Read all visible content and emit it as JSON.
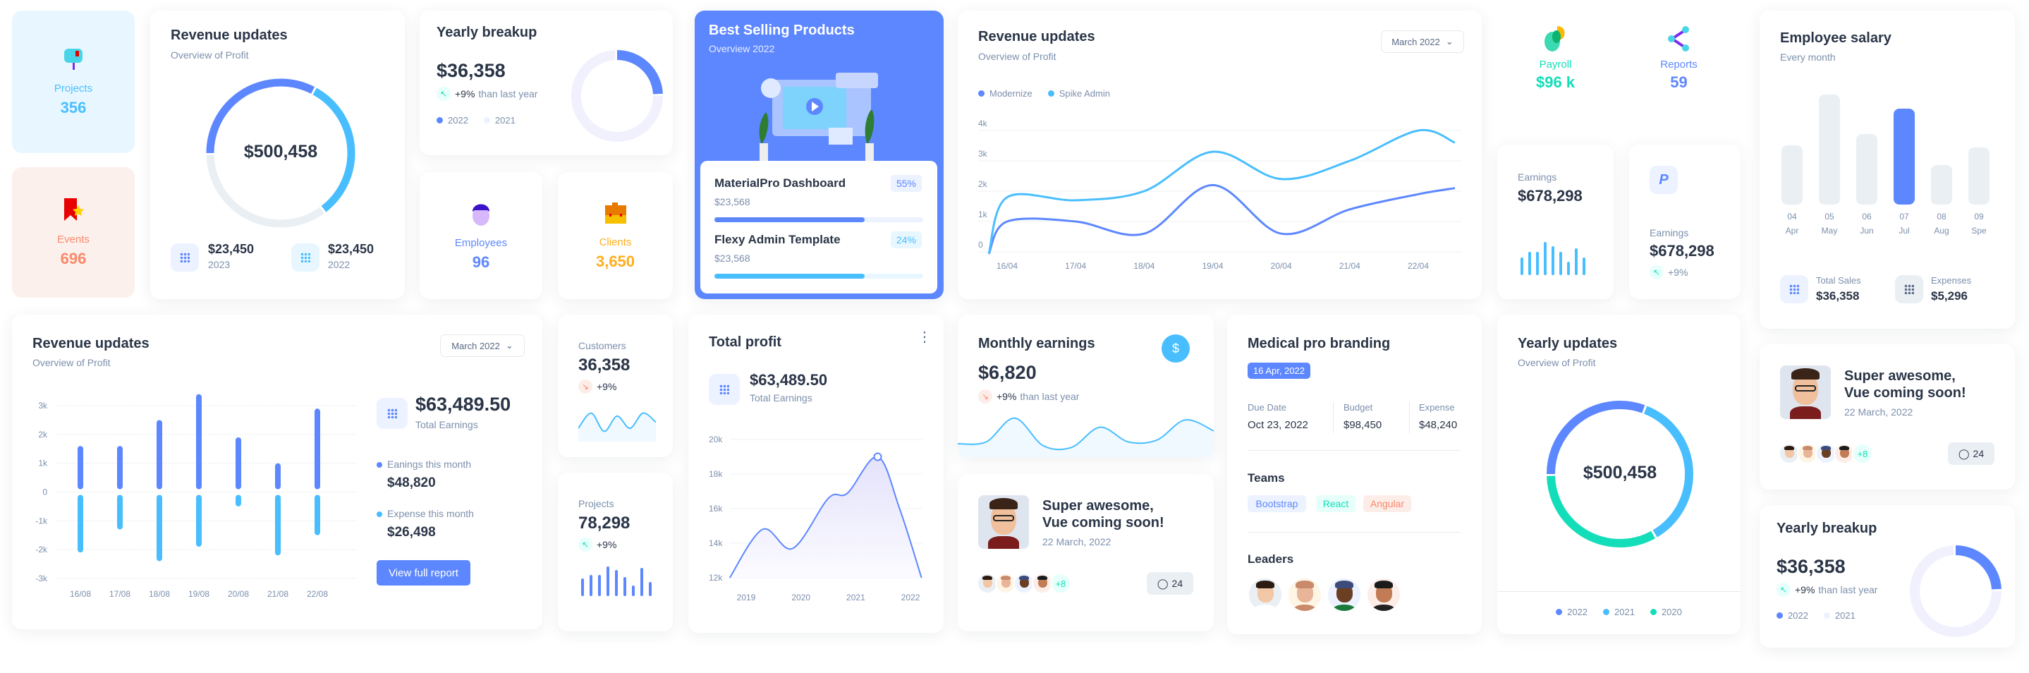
{
  "colors": {
    "primary": "#5d87ff",
    "secondary": "#49beff",
    "success": "#13deb9",
    "warning": "#ffae1f",
    "error": "#fa896b",
    "light_primary": "#ecf2ff",
    "grey": "#eaeff4",
    "text": "#2a3547"
  },
  "projects": {
    "label": "Projects",
    "value": "356",
    "icon": "mailbox-icon"
  },
  "events": {
    "label": "Events",
    "value": "696",
    "icon": "bookmark-star-icon"
  },
  "revenue_donut": {
    "title": "Revenue updates",
    "subtitle": "Overview of Profit",
    "center": "$500,458",
    "segments": [
      0.33,
      0.32,
      0.35
    ],
    "stats": [
      {
        "value": "$23,450",
        "label": "2023"
      },
      {
        "value": "$23,450",
        "label": "2022"
      }
    ]
  },
  "yearly_breakup": {
    "title": "Yearly breakup",
    "value": "$36,358",
    "trend": "+9%",
    "trend_text": "than last year",
    "legend": [
      "2022",
      "2021"
    ],
    "segments": [
      0.25,
      0.75
    ]
  },
  "employees": {
    "label": "Employees",
    "value": "96"
  },
  "clients": {
    "label": "Clients",
    "value": "3,650"
  },
  "best_selling": {
    "title": "Best Selling Products",
    "subtitle": "Overview 2022",
    "items": [
      {
        "name": "MaterialPro Dashboard",
        "price": "$23,568",
        "badge": "55%",
        "progress": 0.72
      },
      {
        "name": "Flexy Admin Template",
        "price": "$23,568",
        "badge": "24%",
        "progress": 0.72
      }
    ]
  },
  "revenue_line": {
    "title": "Revenue updates",
    "subtitle": "Overview of Profit",
    "dropdown": "March 2022",
    "chart_data": {
      "type": "line",
      "x": [
        "16/04",
        "17/04",
        "18/04",
        "19/04",
        "20/04",
        "21/04",
        "22/04"
      ],
      "y_ticks": [
        "0",
        "1k",
        "2k",
        "3k",
        "4k"
      ],
      "ylim": [
        0,
        4000
      ],
      "grid": true,
      "legend": "top-left",
      "series": [
        {
          "name": "Modernize",
          "values": [
            1000,
            1000,
            600,
            2200,
            600,
            1400,
            1900
          ]
        },
        {
          "name": "Spike Admin",
          "values": [
            1800,
            1700,
            2000,
            3300,
            2400,
            3000,
            4000
          ]
        }
      ]
    }
  },
  "payroll": {
    "label": "Payroll",
    "value": "$96 k"
  },
  "reports": {
    "label": "Reports",
    "value": "59"
  },
  "earnings_bars": {
    "label": "Earnings",
    "value": "$678,298",
    "levels": [
      0.45,
      0.6,
      0.6,
      0.85,
      0.75,
      0.6,
      0.35,
      0.7,
      0.45
    ]
  },
  "earnings_paypal": {
    "label": "Earnings",
    "value": "$678,298",
    "trend": "+9%"
  },
  "employee_salary": {
    "title": "Employee salary",
    "subtitle": "Every month",
    "chart_data": {
      "type": "bar",
      "categories": [
        "04",
        "05",
        "06",
        "07",
        "08",
        "09"
      ],
      "months": [
        "Apr",
        "May",
        "Jun",
        "Jul",
        "Aug",
        "Spe"
      ],
      "values": [
        0.54,
        1.0,
        0.64,
        0.87,
        0.36,
        0.52
      ],
      "highlight": "07"
    },
    "stats": [
      {
        "label": "Total Sales",
        "value": "$36,358"
      },
      {
        "label": "Expenses",
        "value": "$5,296"
      }
    ]
  },
  "revenue_bars": {
    "title": "Revenue updates",
    "subtitle": "Overview of Profit",
    "dropdown": "March 2022",
    "chart_data": {
      "type": "bar",
      "categories": [
        "16/08",
        "17/08",
        "18/08",
        "19/08",
        "20/08",
        "21/08",
        "22/08"
      ],
      "y_ticks": [
        "3k",
        "2k",
        "1k",
        "0",
        "-1k",
        "-2k",
        "-3k"
      ],
      "ylim": [
        -3000,
        3000
      ],
      "grid": true,
      "series": [
        {
          "values": [
            1500,
            1500,
            2400,
            3300,
            1800,
            900,
            2800
          ]
        },
        {
          "values": [
            -2000,
            -1200,
            -2300,
            -1800,
            -400,
            -2100,
            -1400
          ]
        }
      ]
    },
    "total": "$63,489.50",
    "total_label": "Total Earnings",
    "earnings_label": "Eanings this month",
    "earnings_value": "$48,820",
    "expense_label": "Expense this month",
    "expense_value": "$26,498",
    "button": "View full report"
  },
  "customers": {
    "label": "Customers",
    "value": "36,358",
    "trend": "+9%",
    "spark": [
      0.3,
      0.8,
      0.2,
      0.7,
      0.3,
      0.8,
      0.5
    ]
  },
  "projects2": {
    "label": "Projects",
    "value": "78,298",
    "trend": "+9%",
    "levels": [
      0.5,
      0.6,
      0.6,
      0.85,
      0.75,
      0.55,
      0.3,
      0.8,
      0.4
    ]
  },
  "total_profit": {
    "title": "Total profit",
    "value": "$63,489.50",
    "value_label": "Total Earnings",
    "chart_data": {
      "type": "area",
      "x_ticks": [
        "2019",
        "2020",
        "2021",
        "2022"
      ],
      "y_ticks": [
        "20k",
        "18k",
        "16k",
        "14k",
        "12k"
      ],
      "ylim": [
        12000,
        20000
      ],
      "xlim": [
        2018.7,
        2022.2
      ],
      "grid": true,
      "points": [
        [
          2018.7,
          12000
        ],
        [
          2019.3,
          14800
        ],
        [
          2019.85,
          13700
        ],
        [
          2020.5,
          16600
        ],
        [
          2020.85,
          16900
        ],
        [
          2021.4,
          19000
        ],
        [
          2021.8,
          16000
        ],
        [
          2022.2,
          12000
        ]
      ],
      "marker_x": 2021.4
    }
  },
  "monthly_earnings": {
    "title": "Monthly earnings",
    "value": "$6,820",
    "trend": "+9%",
    "trend_text": "than last year",
    "icon": "dollar-icon",
    "spark": [
      0.25,
      0.3,
      0.95,
      0.2,
      0.15,
      0.7,
      0.3,
      0.35,
      0.9,
      0.6
    ]
  },
  "post1": {
    "title1": "Super awesome,",
    "title2": "Vue coming soon!",
    "date": "22 March, 2022",
    "more": "+8",
    "comments": "24"
  },
  "post2": {
    "title1": "Super awesome,",
    "title2": "Vue coming soon!",
    "date": "22 March, 2022",
    "more": "+8",
    "comments": "24"
  },
  "medical": {
    "title": "Medical pro branding",
    "date_badge": "16 Apr, 2022",
    "cols": [
      {
        "label": "Due Date",
        "value": "Oct 23, 2022"
      },
      {
        "label": "Budget",
        "value": "$98,450"
      },
      {
        "label": "Expense",
        "value": "$48,240"
      }
    ],
    "teams_label": "Teams",
    "teams": [
      "Bootstrap",
      "React",
      "Angular"
    ],
    "leaders_label": "Leaders"
  },
  "yearly_updates": {
    "title": "Yearly updates",
    "subtitle": "Overview of Profit",
    "center": "$500,458",
    "legend": [
      "2022",
      "2021",
      "2020"
    ],
    "segments": [
      0.31,
      0.36,
      0.33
    ]
  },
  "yearly_breakup2": {
    "title": "Yearly breakup",
    "value": "$36,358",
    "trend": "+9%",
    "trend_text": "than last year",
    "legend": [
      "2022",
      "2021"
    ],
    "segments": [
      0.25,
      0.75
    ]
  }
}
